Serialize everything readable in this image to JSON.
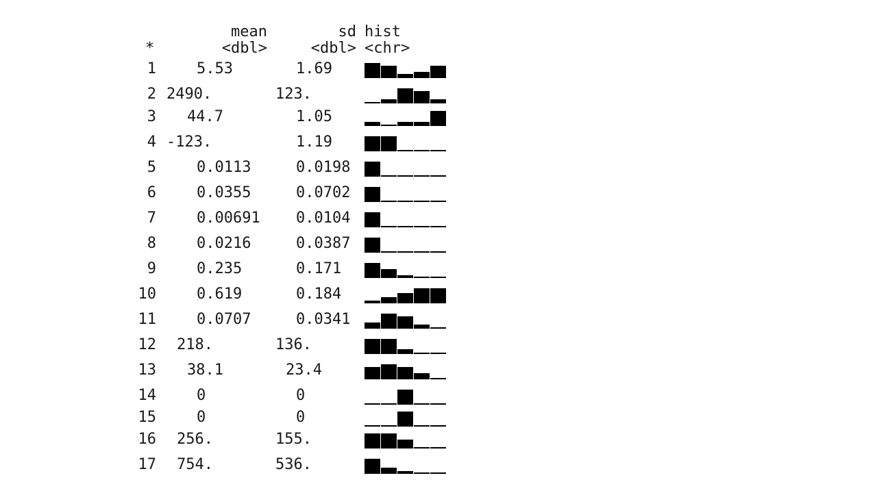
{
  "header_cut_text": "…",
  "columns": [
    {
      "name": "mean",
      "type": "<dbl>"
    },
    {
      "name": "sd",
      "type": "<dbl>"
    },
    {
      "name": "hist",
      "type": "<chr>"
    }
  ],
  "rowname_type": "*",
  "rows": [
    {
      "id": "1",
      "mean": "5.53",
      "sd": "1.69",
      "hist": [
        1.0,
        0.8,
        0.25,
        0.4,
        0.8
      ]
    },
    {
      "id": "2",
      "mean": "2490.",
      "sd": "123.",
      "hist": [
        0.05,
        0.25,
        1.0,
        0.8,
        0.25
      ]
    },
    {
      "id": "3",
      "mean": "44.7",
      "sd": "1.05",
      "hist": [
        0.25,
        0.05,
        0.25,
        0.25,
        1.0
      ]
    },
    {
      "id": "4",
      "mean": "-123.",
      "sd": "1.19",
      "hist": [
        1.0,
        1.0,
        0.05,
        0.05,
        0.05
      ]
    },
    {
      "id": "5",
      "mean": "0.0113",
      "sd": "0.0198",
      "hist": [
        1.0,
        0.05,
        0.05,
        0.05,
        0.05
      ]
    },
    {
      "id": "6",
      "mean": "0.0355",
      "sd": "0.0702",
      "hist": [
        1.0,
        0.05,
        0.05,
        0.05,
        0.05
      ]
    },
    {
      "id": "7",
      "mean": "0.00691",
      "sd": "0.0104",
      "hist": [
        1.0,
        0.05,
        0.05,
        0.05,
        0.05
      ]
    },
    {
      "id": "8",
      "mean": "0.0216",
      "sd": "0.0387",
      "hist": [
        1.0,
        0.05,
        0.05,
        0.05,
        0.05
      ]
    },
    {
      "id": "9",
      "mean": "0.235",
      "sd": "0.171",
      "hist": [
        1.0,
        0.6,
        0.2,
        0.05,
        0.05
      ]
    },
    {
      "id": "10",
      "mean": "0.619",
      "sd": "0.184",
      "hist": [
        0.2,
        0.4,
        0.7,
        1.0,
        1.0
      ]
    },
    {
      "id": "11",
      "mean": "0.0707",
      "sd": "0.0341",
      "hist": [
        0.4,
        1.0,
        0.8,
        0.25,
        0.05
      ]
    },
    {
      "id": "12",
      "mean": "218.",
      "sd": "136.",
      "hist": [
        1.0,
        1.0,
        0.3,
        0.05,
        0.05
      ]
    },
    {
      "id": "13",
      "mean": "38.1",
      "sd": "23.4",
      "hist": [
        0.8,
        1.0,
        0.8,
        0.4,
        0.05
      ]
    },
    {
      "id": "14",
      "mean": "0",
      "sd": "0",
      "hist": [
        0.05,
        0.05,
        1.0,
        0.05,
        0.05
      ]
    },
    {
      "id": "15",
      "mean": "0",
      "sd": "0",
      "hist": [
        0.05,
        0.05,
        1.0,
        0.05,
        0.05
      ]
    },
    {
      "id": "16",
      "mean": "256.",
      "sd": "155.",
      "hist": [
        1.0,
        1.0,
        0.6,
        0.05,
        0.05
      ]
    },
    {
      "id": "17",
      "mean": "754.",
      "sd": "536.",
      "hist": [
        1.0,
        0.4,
        0.2,
        0.05,
        0.05
      ]
    }
  ]
}
